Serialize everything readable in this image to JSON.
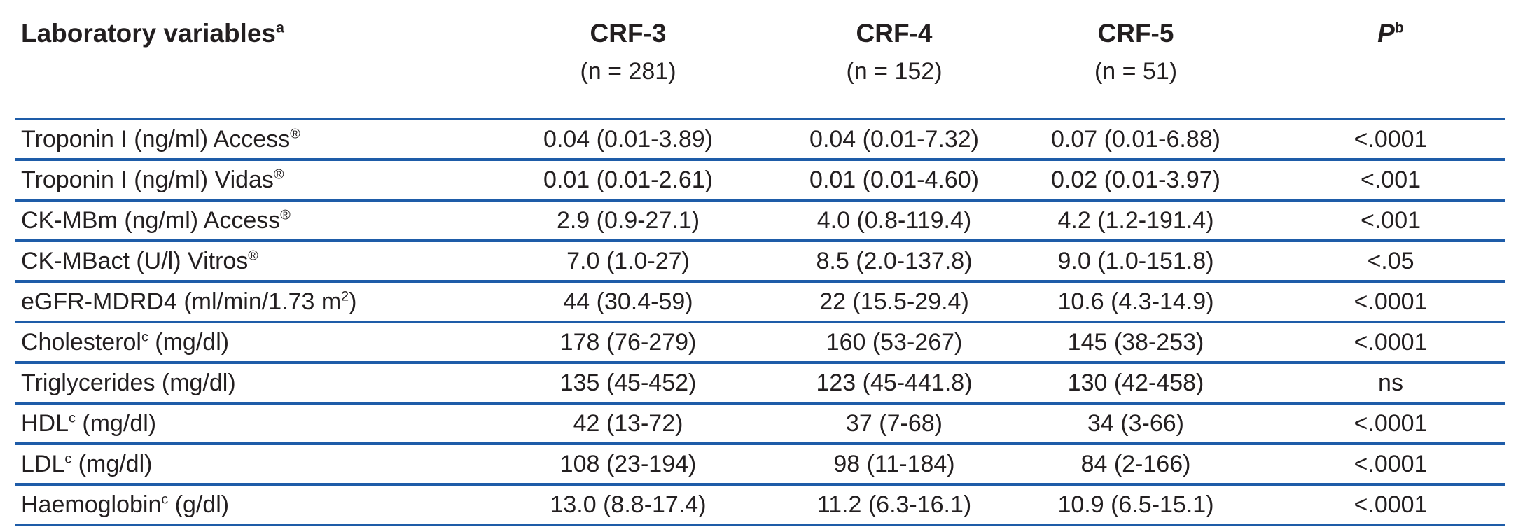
{
  "table": {
    "title": "Laboratory variables",
    "title_sup": "a",
    "accent_line_color": "#1e5ca8",
    "text_color": "#231f20",
    "header": {
      "col_crf3": {
        "label": "CRF-3",
        "n": "(n = 281)"
      },
      "col_crf4": {
        "label": "CRF-4",
        "n": "(n = 152)"
      },
      "col_crf5": {
        "label": "CRF-5",
        "n": "(n = 51)"
      },
      "col_p": {
        "label": "P",
        "sup": "b"
      }
    },
    "rows": [
      {
        "label": "Troponin I (ng/ml) Access",
        "sup": "®",
        "rest": "",
        "crf3": "0.04 (0.01-3.89)",
        "crf4": "0.04 (0.01-7.32)",
        "crf5": "0.07 (0.01-6.88)",
        "p": "<.0001"
      },
      {
        "label": "Troponin I (ng/ml) Vidas",
        "sup": "®",
        "rest": "",
        "crf3": "0.01 (0.01-2.61)",
        "crf4": "0.01 (0.01-4.60)",
        "crf5": "0.02 (0.01-3.97)",
        "p": "<.001"
      },
      {
        "label": "CK-MBm (ng/ml) Access",
        "sup": "®",
        "rest": "",
        "crf3": "2.9 (0.9-27.1)",
        "crf4": "4.0 (0.8-119.4)",
        "crf5": "4.2 (1.2-191.4)",
        "p": "<.001"
      },
      {
        "label": "CK-MBact (U/l) Vitros",
        "sup": "®",
        "rest": "",
        "crf3": "7.0 (1.0-27)",
        "crf4": "8.5 (2.0-137.8)",
        "crf5": "9.0 (1.0-151.8)",
        "p": "<.05"
      },
      {
        "label": "eGFR-MDRD4 (ml/min/1.73 m",
        "sup": "2",
        "rest": ")",
        "crf3": "44 (30.4-59)",
        "crf4": "22 (15.5-29.4)",
        "crf5": "10.6 (4.3-14.9)",
        "p": "<.0001"
      },
      {
        "label": "Cholesterol",
        "sup": "c",
        "rest": " (mg/dl)",
        "crf3": "178 (76-279)",
        "crf4": "160 (53-267)",
        "crf5": "145 (38-253)",
        "p": "<.0001"
      },
      {
        "label": "Triglycerides (mg/dl)",
        "sup": "",
        "rest": "",
        "crf3": "135 (45-452)",
        "crf4": "123 (45-441.8)",
        "crf5": "130 (42-458)",
        "p": "ns"
      },
      {
        "label": "HDL",
        "sup": "c",
        "rest": " (mg/dl)",
        "crf3": "42 (13-72)",
        "crf4": "37 (7-68)",
        "crf5": "34 (3-66)",
        "p": "<.0001"
      },
      {
        "label": "LDL",
        "sup": "c",
        "rest": " (mg/dl)",
        "crf3": "108 (23-194)",
        "crf4": "98 (11-184)",
        "crf5": "84 (2-166)",
        "p": "<.0001"
      },
      {
        "label": "Haemoglobin",
        "sup": "c",
        "rest": " (g/dl)",
        "crf3": "13.0 (8.8-17.4)",
        "crf4": "11.2 (6.3-16.1)",
        "crf5": "10.9 (6.5-15.1)",
        "p": "<.0001"
      }
    ]
  }
}
